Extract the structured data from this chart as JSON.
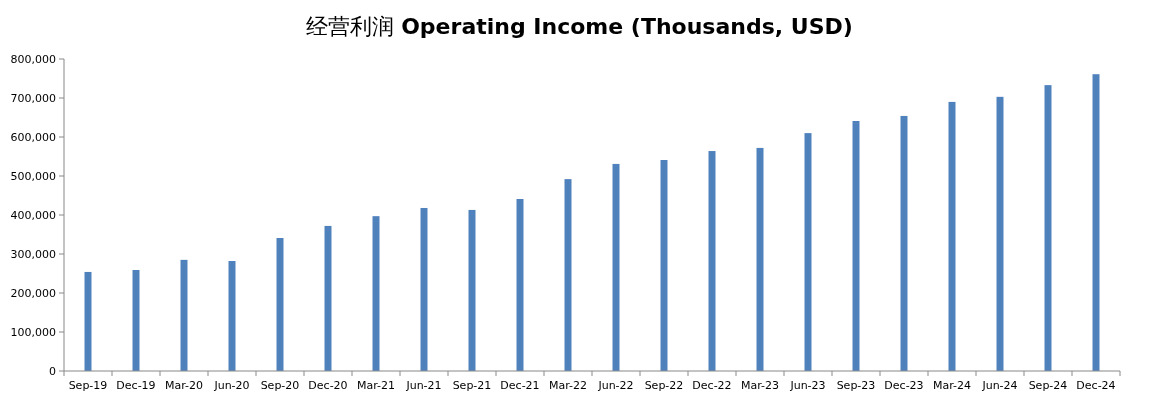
{
  "chart_data": {
    "type": "bar",
    "title": "经营利润 **Operating Income (Thousands, USD)**",
    "categories": [
      "Sep-19",
      "Dec-19",
      "Mar-20",
      "Jun-20",
      "Sep-20",
      "Dec-20",
      "Mar-21",
      "Jun-21",
      "Sep-21",
      "Dec-21",
      "Mar-22",
      "Jun-22",
      "Sep-22",
      "Dec-22",
      "Mar-23",
      "Jun-23",
      "Sep-23",
      "Dec-23",
      "Mar-24",
      "Jun-24",
      "Sep-24",
      "Dec-24"
    ],
    "values": [
      254000,
      259000,
      285000,
      282000,
      341000,
      372000,
      397000,
      418000,
      413000,
      441000,
      492000,
      531000,
      541000,
      564000,
      572000,
      610000,
      641000,
      654000,
      690000,
      703000,
      733000,
      761000
    ],
    "color": "#4f81bd",
    "ylim": [
      0,
      800000
    ],
    "yticks": [
      {
        "value": 0,
        "label": "0"
      },
      {
        "value": 100000,
        "label": "100,000"
      },
      {
        "value": 200000,
        "label": "200,000"
      },
      {
        "value": 300000,
        "label": "300,000"
      },
      {
        "value": 400000,
        "label": "400,000"
      },
      {
        "value": 500000,
        "label": "500,000"
      },
      {
        "value": 600000,
        "label": "600,000"
      },
      {
        "value": 700000,
        "label": "700,000"
      },
      {
        "value": 800000,
        "label": "800,000"
      }
    ],
    "grid": false
  }
}
